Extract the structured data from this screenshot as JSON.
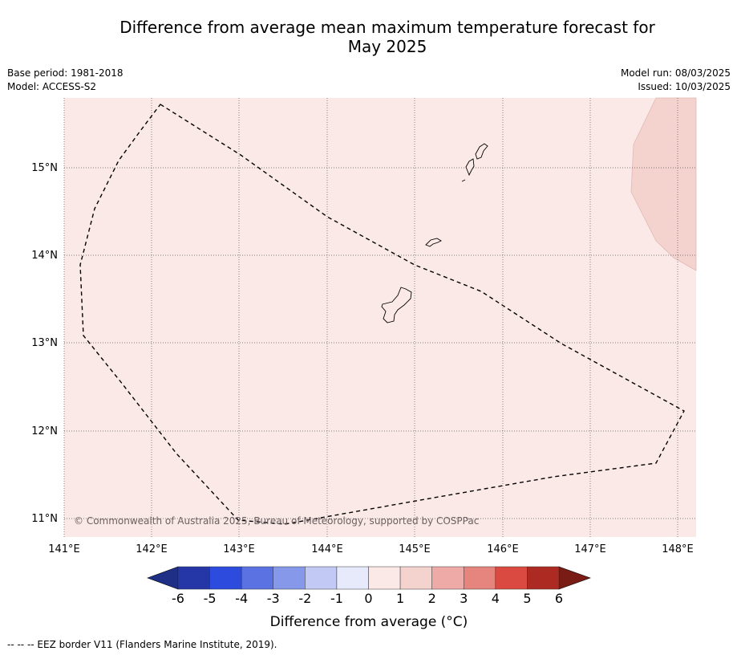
{
  "title": {
    "line1": "Difference from average mean maximum temperature forecast for",
    "line2": "May 2025"
  },
  "meta": {
    "base_period": "Base period: 1981-2018",
    "model": "Model: ACCESS-S2",
    "model_run": "Model run: 08/03/2025",
    "issued": "Issued: 10/03/2025"
  },
  "map": {
    "region": "Guam / Northern Mariana Islands",
    "lon_ticks": [
      "141°E",
      "142°E",
      "143°E",
      "144°E",
      "145°E",
      "146°E",
      "147°E",
      "148°E"
    ],
    "lat_ticks": [
      "15°N",
      "14°N",
      "13°N",
      "12°N",
      "11°N"
    ],
    "background_anomaly_color": "#fbe9e7",
    "warmer_patch_color": "#f4d3cf",
    "copyright": "© Commonwealth of Australia 2025, Bureau of Meteorology, supported by COSPPac",
    "eez_border_style": "dashed black line"
  },
  "colorbar": {
    "label": "Difference from average (°C)",
    "ticks": [
      "-6",
      "-5",
      "-4",
      "-3",
      "-2",
      "-1",
      "0",
      "1",
      "2",
      "3",
      "4",
      "5",
      "6"
    ],
    "under_color": "#1e2f85",
    "over_color": "#7a1c16",
    "colors": [
      "#2536a6",
      "#2d4bdc",
      "#5a72e2",
      "#8598ea",
      "#c1c9f4",
      "#e6eafb",
      "#fbe9e7",
      "#f4d3cf",
      "#eeaaa6",
      "#e6847e",
      "#db4a40",
      "#ad2a22"
    ]
  },
  "footer": {
    "legend_note": "--  --  -- EEZ border V11 (Flanders Marine Institute, 2019)."
  }
}
